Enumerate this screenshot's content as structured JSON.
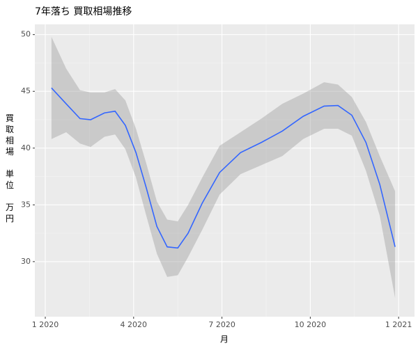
{
  "chart_data": {
    "type": "smooth",
    "title": "7年落ち 買取相場推移",
    "xlabel": "月",
    "ylabel": "買取相場 単位 万円",
    "color": "#3366FF",
    "band_color": "#999999",
    "x": [
      0.21,
      0.71,
      1.18,
      1.54,
      2.01,
      2.37,
      2.72,
      3.08,
      3.43,
      3.79,
      4.14,
      4.5,
      4.85,
      5.33,
      5.92,
      6.63,
      7.34,
      8.05,
      8.76,
      9.47,
      9.94,
      10.41,
      10.89,
      11.36,
      11.88
    ],
    "values": [
      45.3,
      43.9,
      42.6,
      42.5,
      43.1,
      43.25,
      42.0,
      39.6,
      36.5,
      33.1,
      31.3,
      31.2,
      32.5,
      35.15,
      37.85,
      39.6,
      40.5,
      41.5,
      42.8,
      43.7,
      43.75,
      42.9,
      40.5,
      36.8,
      31.3
    ],
    "upper": [
      49.8,
      47.0,
      45.1,
      44.9,
      44.9,
      45.2,
      44.2,
      41.7,
      38.65,
      35.3,
      33.7,
      33.55,
      35.0,
      37.4,
      40.2,
      41.4,
      42.6,
      43.9,
      44.8,
      45.8,
      45.6,
      44.5,
      42.3,
      39.3,
      36.2
    ],
    "lower": [
      40.8,
      41.4,
      40.4,
      40.1,
      41.0,
      41.2,
      39.9,
      37.4,
      34.05,
      30.7,
      28.65,
      28.8,
      30.4,
      32.8,
      35.9,
      37.7,
      38.5,
      39.3,
      40.8,
      41.7,
      41.7,
      41.1,
      38.0,
      34.05,
      26.8
    ],
    "xlim": [
      -0.355,
      12.54
    ],
    "xticks": [
      {
        "value": 0,
        "label": "1 2020"
      },
      {
        "value": 3,
        "label": "4 2020"
      },
      {
        "value": 6,
        "label": "7 2020"
      },
      {
        "value": 9,
        "label": "10 2020"
      },
      {
        "value": 12,
        "label": "1 2021"
      }
    ],
    "ylim": [
      25.15,
      50.9
    ],
    "yticks": [
      30,
      35,
      40,
      45,
      50
    ],
    "grid": true
  }
}
